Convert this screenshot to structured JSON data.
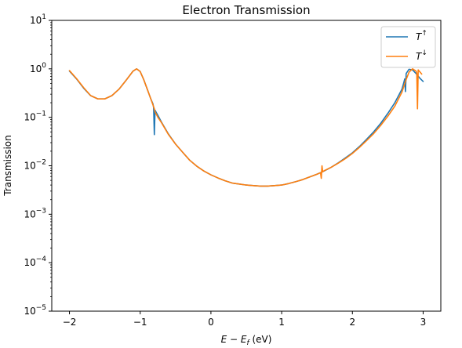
{
  "chart_data": {
    "type": "line",
    "title": "Electron Transmission",
    "xlabel_main": "E − E",
    "xlabel_sub": "f",
    "xlabel_unit": " (eV)",
    "ylabel": "Transmission",
    "xlim": [
      -2.25,
      3.25
    ],
    "ylim": [
      1e-05,
      10
    ],
    "yscale": "log",
    "grid": false,
    "legend_position": "top-right",
    "x_ticks": [
      -2,
      -1,
      0,
      1,
      2,
      3
    ],
    "x_tick_labels": [
      "−2",
      "−1",
      "0",
      "1",
      "2",
      "3"
    ],
    "y_ticks": [
      1e-05,
      0.0001,
      0.001,
      0.01,
      0.1,
      1,
      10
    ],
    "y_tick_exponents": [
      "−5",
      "−4",
      "−3",
      "−2",
      "−1",
      "0",
      "1"
    ],
    "y_tick_base": "10",
    "series": [
      {
        "name_base": "T",
        "name_sup": "↑",
        "color": "#1f77b4",
        "x": [
          -2.0,
          -1.9,
          -1.8,
          -1.7,
          -1.6,
          -1.5,
          -1.4,
          -1.3,
          -1.2,
          -1.1,
          -1.05,
          -1.0,
          -0.95,
          -0.9,
          -0.85,
          -0.82,
          -0.81,
          -0.8,
          -0.79,
          -0.75,
          -0.7,
          -0.6,
          -0.5,
          -0.4,
          -0.3,
          -0.2,
          -0.1,
          0.0,
          0.1,
          0.2,
          0.3,
          0.4,
          0.5,
          0.6,
          0.7,
          0.8,
          0.9,
          1.0,
          1.1,
          1.2,
          1.3,
          1.4,
          1.5,
          1.6,
          1.7,
          1.8,
          1.9,
          2.0,
          2.1,
          2.2,
          2.3,
          2.4,
          2.5,
          2.6,
          2.7,
          2.72,
          2.74,
          2.75,
          2.76,
          2.8,
          2.85,
          2.9,
          2.95,
          3.0
        ],
        "y": [
          0.9,
          0.62,
          0.4,
          0.28,
          0.24,
          0.24,
          0.28,
          0.38,
          0.58,
          0.9,
          1.0,
          0.88,
          0.6,
          0.38,
          0.24,
          0.19,
          0.16,
          0.044,
          0.14,
          0.11,
          0.08,
          0.045,
          0.028,
          0.019,
          0.013,
          0.0098,
          0.0078,
          0.0065,
          0.0056,
          0.0049,
          0.0044,
          0.0042,
          0.004,
          0.0039,
          0.0038,
          0.0038,
          0.0039,
          0.004,
          0.0043,
          0.0047,
          0.0052,
          0.0059,
          0.0067,
          0.0078,
          0.0093,
          0.0115,
          0.0145,
          0.0185,
          0.025,
          0.035,
          0.05,
          0.075,
          0.12,
          0.2,
          0.38,
          0.48,
          0.62,
          0.34,
          0.8,
          0.98,
          0.95,
          0.8,
          0.65,
          0.55
        ]
      },
      {
        "name_base": "T",
        "name_sup": "↓",
        "color": "#ff7f0e",
        "x": [
          -2.0,
          -1.9,
          -1.8,
          -1.7,
          -1.6,
          -1.5,
          -1.4,
          -1.3,
          -1.2,
          -1.1,
          -1.05,
          -1.0,
          -0.95,
          -0.9,
          -0.85,
          -0.8,
          -0.79,
          -0.75,
          -0.7,
          -0.6,
          -0.5,
          -0.4,
          -0.3,
          -0.2,
          -0.1,
          0.0,
          0.1,
          0.2,
          0.3,
          0.4,
          0.5,
          0.6,
          0.7,
          0.8,
          0.9,
          1.0,
          1.1,
          1.2,
          1.3,
          1.4,
          1.5,
          1.55,
          1.56,
          1.57,
          1.58,
          1.6,
          1.7,
          1.8,
          1.9,
          2.0,
          2.1,
          2.2,
          2.3,
          2.4,
          2.5,
          2.6,
          2.7,
          2.75,
          2.8,
          2.85,
          2.9,
          2.91,
          2.92,
          2.93,
          2.95,
          2.98
        ],
        "y": [
          0.92,
          0.63,
          0.41,
          0.28,
          0.24,
          0.24,
          0.28,
          0.38,
          0.58,
          0.9,
          1.0,
          0.88,
          0.6,
          0.38,
          0.24,
          0.15,
          0.13,
          0.1,
          0.078,
          0.044,
          0.028,
          0.019,
          0.013,
          0.0098,
          0.0078,
          0.0065,
          0.0056,
          0.0049,
          0.0044,
          0.0042,
          0.004,
          0.0039,
          0.0038,
          0.0038,
          0.0039,
          0.004,
          0.0043,
          0.0047,
          0.0052,
          0.0059,
          0.0067,
          0.0072,
          0.0055,
          0.01,
          0.0075,
          0.0079,
          0.0093,
          0.0113,
          0.014,
          0.018,
          0.024,
          0.033,
          0.046,
          0.068,
          0.105,
          0.17,
          0.33,
          0.55,
          0.85,
          1.0,
          0.9,
          0.82,
          0.15,
          0.95,
          0.88,
          0.78
        ]
      }
    ]
  }
}
